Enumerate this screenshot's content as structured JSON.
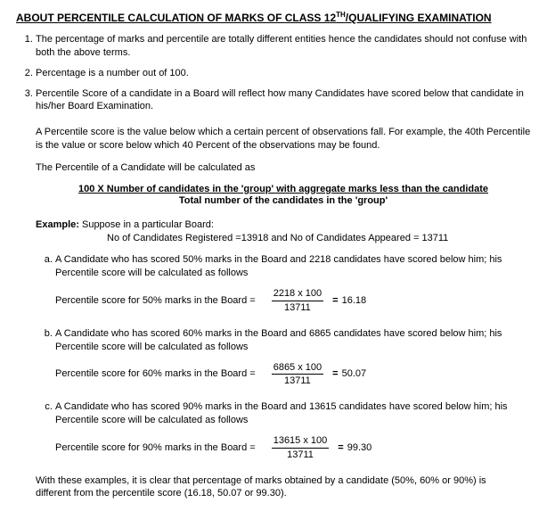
{
  "title_before_sup": "ABOUT PERCENTILE CALCULATION OF MARKS OF CLASS 12",
  "title_sup": "TH",
  "title_after_sup": "/QUALIFYING EXAMINATION",
  "points": [
    "The percentage of marks and percentile are totally different entities hence the candidates should not confuse with both the above terms.",
    "Percentage is a number out of 100.",
    "Percentile Score of a candidate in a Board will reflect how many Candidates have scored below that candidate in his/her Board Examination."
  ],
  "def_para": "A Percentile score is the value below which a certain percent of observations fall. For example, the 40th Percentile is the value or score below which 40 Percent of the observations may be found.",
  "calc_intro": "The Percentile of a Candidate will be calculated as",
  "formula_num": "100 X Number of candidates in the 'group' with aggregate marks less than the candidate",
  "formula_den": "Total number of the candidates in the 'group'",
  "example_label": "Example:",
  "example_line1": "Suppose in a particular Board:",
  "example_line2": "No of Candidates Registered =13918 and No of Candidates Appeared = 13711",
  "subitems": [
    {
      "text": "A Candidate who has scored 50% marks in the Board and 2218 candidates have scored below him; his Percentile score will be calculated as follows",
      "calc_label": "Percentile score for 50% marks in the Board =",
      "frac_top": "2218 x 100",
      "frac_bot": "13711",
      "result": "16.18"
    },
    {
      "text": "A Candidate who has scored 60% marks in the Board and 6865 candidates have scored below him; his Percentile score will be calculated as follows",
      "calc_label": "Percentile score for 60% marks in the Board =",
      "frac_top": "6865 x 100",
      "frac_bot": "13711",
      "result": "50.07"
    },
    {
      "text": "A Candidate who has scored 90% marks in the Board and 13615 candidates have scored below him; his Percentile score will be calculated as follows",
      "calc_label": "Percentile score for 90% marks in the Board =",
      "frac_top": "13615 x 100",
      "frac_bot": "13711",
      "result": "99.30"
    }
  ],
  "summary": "With these examples, it is clear that percentage of marks obtained by a candidate (50%, 60% or 90%) is different from the percentile score (16.18, 50.07 or 99.30)."
}
